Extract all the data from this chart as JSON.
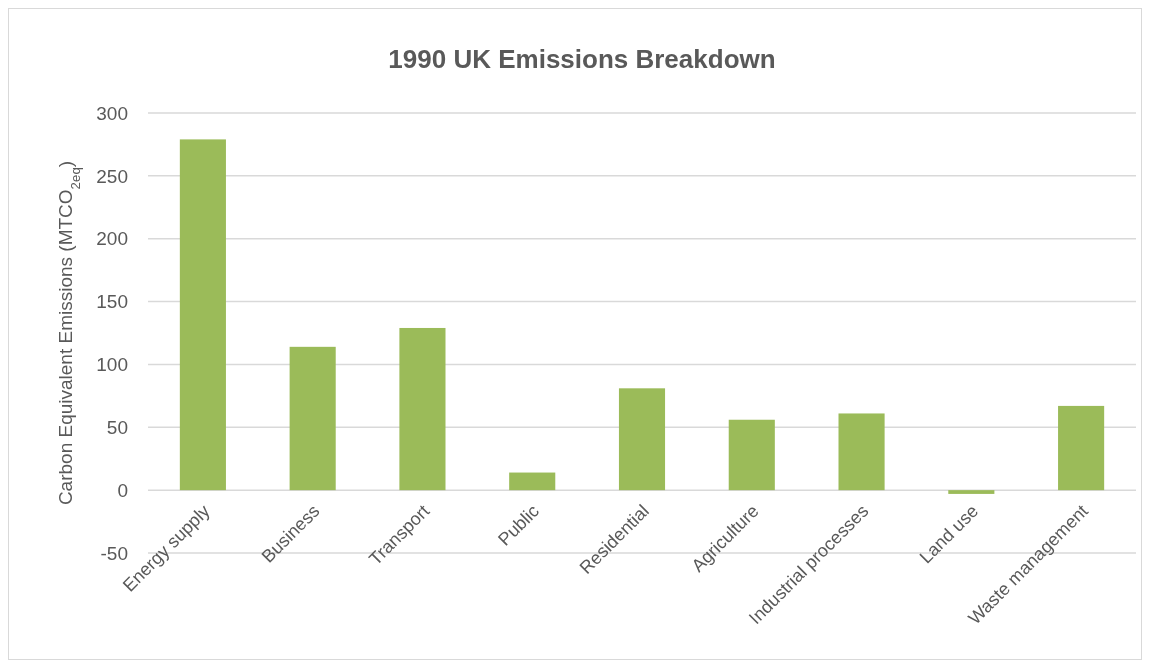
{
  "chart_data": {
    "type": "bar",
    "title": "1990 UK Emissions Breakdown",
    "ylabel": "Carbon Equivalent Emissions (MTCO$_{2eq}$)",
    "categories": [
      "Energy supply",
      "Business",
      "Transport",
      "Public",
      "Residential",
      "Agriculture",
      "Industrial processes",
      "Land use",
      "Waste management"
    ],
    "values": [
      279,
      114,
      129,
      14,
      81,
      56,
      61,
      -3,
      67
    ],
    "color": "#9bbb59",
    "ylim": [
      -50,
      300
    ],
    "yticks": [
      -50,
      0,
      50,
      100,
      150,
      200,
      250,
      300
    ],
    "grid": "y"
  }
}
